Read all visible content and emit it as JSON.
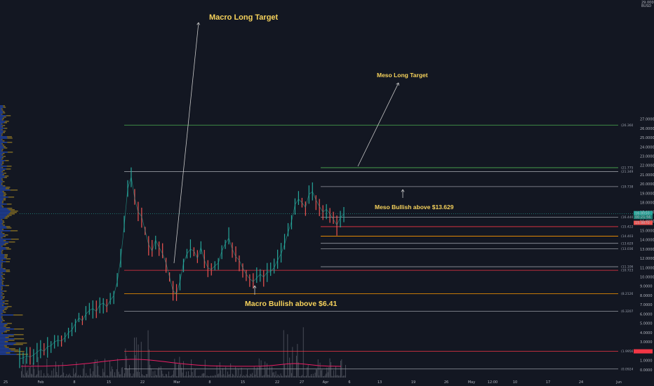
{
  "chart_data": {
    "type": "line",
    "corner_labels": [
      "29.0000",
      "BUSD"
    ],
    "price_axis": {
      "ticks": [
        "27.0000",
        "26.0000",
        "25.0000",
        "24.0000",
        "23.0000",
        "22.0000",
        "21.0000",
        "20.0000",
        "19.0000",
        "18.0000",
        "17.0000",
        "16.0000",
        "15.0000",
        "14.0000",
        "13.0000",
        "12.0000",
        "11.0000",
        "10.0000",
        "9.0000",
        "8.0000",
        "7.0000",
        "6.0000",
        "5.0000",
        "4.0000",
        "3.0000",
        "2.0000",
        "1.0000",
        "0.0000"
      ],
      "current_labels": [
        "16.8050",
        "00:21:56",
        "15.9870"
      ],
      "ylim": [
        0,
        28
      ]
    },
    "time_axis": {
      "ticks": [
        "25",
        "Feb",
        "8",
        "15",
        "22",
        "Mar",
        "8",
        "15",
        "22",
        "27",
        "Apr",
        "6",
        "13",
        "19",
        "26",
        "May",
        "12:00",
        "10",
        "17",
        "24",
        "Jun"
      ]
    },
    "levels": [
      {
        "label": "(26.3600)",
        "value": 26.36,
        "color": "#4caf50"
      },
      {
        "label": "(21.7750)",
        "value": 21.775,
        "color": "#4caf50"
      },
      {
        "label": "(21.3496)",
        "value": 21.3496,
        "color": "#9598a1"
      },
      {
        "label": "(19.7385)",
        "value": 19.7385,
        "color": "#9598a1"
      },
      {
        "label": "(16.4400)",
        "value": 16.44,
        "color": "#9598a1"
      },
      {
        "label": "(15.4225)",
        "value": 15.4225,
        "color": "#f23645"
      },
      {
        "label": "(14.4037)",
        "value": 14.4037,
        "color": "#ff9800"
      },
      {
        "label": "(13.6295)",
        "value": 13.6295,
        "color": "#9598a1"
      },
      {
        "label": "(13.0366)",
        "value": 13.0366,
        "color": "#9598a1"
      },
      {
        "label": "(11.1063)",
        "value": 11.1063,
        "color": "#9598a1"
      },
      {
        "label": "(10.7238)",
        "value": 10.7238,
        "color": "#f23645"
      },
      {
        "label": "(8.2126)",
        "value": 8.2126,
        "color": "#ff9800"
      },
      {
        "label": "(6.3207)",
        "value": 6.3207,
        "color": "#9598a1"
      },
      {
        "label": "(1.9956)",
        "value": 1.9956,
        "color": "#f23645"
      },
      {
        "label": "(0.0924)",
        "value": 0.0924,
        "color": "#9598a1"
      }
    ],
    "annotations": [
      {
        "text": "Macro Long Target",
        "value": 26.36
      },
      {
        "text": "Meso Long Target",
        "value": 21.775
      },
      {
        "text": "Meso Bullish above $13.629",
        "value": 13.629
      },
      {
        "text": "Macro Bullish above $6.41",
        "value": 6.41
      }
    ],
    "series": [
      {
        "values": [
          1.2,
          1.3,
          1.5,
          1.4,
          1.6,
          1.9,
          2.2,
          2.0,
          2.5,
          2.6,
          3.0,
          3.2,
          3.1,
          3.5,
          4.0,
          4.3,
          5.0,
          5.6,
          5.3,
          6.0,
          6.4,
          6.6,
          6.3,
          7.0,
          7.2,
          6.8,
          7.5,
          8.0,
          9.5,
          12.0,
          15.5,
          19.5,
          20.8,
          18.5,
          17.0,
          16.5,
          15.0,
          13.5,
          12.8,
          14.0,
          13.2,
          12.5,
          11.5,
          10.0,
          8.5,
          8.2,
          9.5,
          11.5,
          12.5,
          13.0,
          12.8,
          12.0,
          13.2,
          11.8,
          11.0,
          10.8,
          11.2,
          11.5,
          12.8,
          13.6,
          14.2,
          13.0,
          12.2,
          11.8,
          11.0,
          10.3,
          9.8,
          9.5,
          9.9,
          10.3,
          10.0,
          10.5,
          10.6,
          11.0,
          11.8,
          12.5,
          13.5,
          14.8,
          16.0,
          17.8,
          18.4,
          18.0,
          17.5,
          18.9,
          19.2,
          18.3,
          17.6,
          17.0,
          17.3,
          16.8,
          16.2,
          15.6,
          16.4,
          16.8
        ]
      }
    ],
    "xlabel": "",
    "ylabel": "",
    "grid": false
  }
}
